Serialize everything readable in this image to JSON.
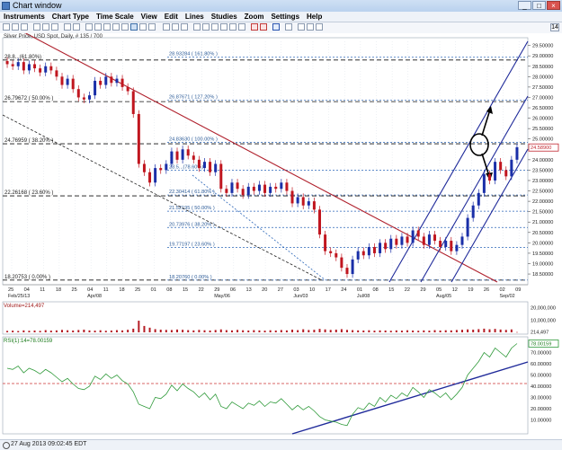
{
  "window": {
    "title": "Chart window",
    "min": "_",
    "max": "□",
    "close": "×"
  },
  "menu": [
    "Instruments",
    "Chart Type",
    "Time Scale",
    "View",
    "Edit",
    "Lines",
    "Studies",
    "Zoom",
    "Settings",
    "Help"
  ],
  "toolbar_badge": "14",
  "instrument_label": "Silver Price, USD Spot, Daily, # 135 / 700",
  "volume_label": "Volume=214,497",
  "rsi_label": "RSI(1):14=78.00159",
  "status": "27 Aug 2013 09:02:45 EDT",
  "price_axis": [
    "29.50000",
    "29.00000",
    "28.50000",
    "28.00000",
    "27.50000",
    "27.00000",
    "26.50000",
    "26.00000",
    "25.50000",
    "25.00000",
    "24.50000",
    "24.00000",
    "23.50000",
    "23.00000",
    "22.50000",
    "22.00000",
    "21.50000",
    "21.00000",
    "20.50000",
    "20.00000",
    "19.50000",
    "19.00000",
    "18.50000"
  ],
  "price_tag": "24.58900",
  "volume_axis": [
    "20,000,000",
    "10,000,000",
    "214,497"
  ],
  "rsi_axis": [
    "70.00000",
    "60.00000",
    "50.00000",
    "40.00000",
    "30.00000",
    "20.00000",
    "10.00000"
  ],
  "rsi_tag": "78.00159",
  "date_ticks": [
    "25",
    "04",
    "11",
    "18",
    "25",
    "04",
    "11",
    "18",
    "25",
    "01",
    "08",
    "15",
    "22",
    "29",
    "06",
    "13",
    "20",
    "27",
    "03",
    "10",
    "17",
    "24",
    "01",
    "08",
    "15",
    "22",
    "29",
    "05",
    "12",
    "19",
    "26",
    "02",
    "09"
  ],
  "month_labels": [
    "Feb/25/13",
    "Apr/08",
    "May/06",
    "Jun/03",
    "Jul/08",
    "Aug/05",
    "Sep/02"
  ],
  "fib_left": [
    "28.8...(61.80%)",
    "26.79672 ( 50.00% )",
    "24.76959 ( 38.20% )",
    "22.26168 ( 23.60% )",
    "18.20753 ( 0.00% )"
  ],
  "fib_right": [
    "28.93284 ( 161.80% )",
    "26.87671 ( 127.20% )",
    "24.83630 ( 100.00% )",
    "23.5...(78.60%)",
    "22.30414 ( 61.80% )",
    "21.52195 ( 50.00% )",
    "20.73976 ( 38.20% )",
    "19.77197 ( 23.60% )",
    "18.20760 ( 0.00% )"
  ],
  "chart_data": {
    "type": "candlestick",
    "instrument": "Silver Price, USD Spot, Daily",
    "y_range": [
      18.2,
      29.7
    ],
    "close_series": [
      28.6,
      28.5,
      28.7,
      28.3,
      28.6,
      28.4,
      28.2,
      28.5,
      28.3,
      28.0,
      27.6,
      27.9,
      27.4,
      27.0,
      26.9,
      27.1,
      27.8,
      27.6,
      28.0,
      27.7,
      27.9,
      27.5,
      27.3,
      26.2,
      23.8,
      23.4,
      22.9,
      23.6,
      23.5,
      23.8,
      24.4,
      24.0,
      24.5,
      24.2,
      24.0,
      23.6,
      23.9,
      23.4,
      23.8,
      22.6,
      22.4,
      22.9,
      22.6,
      22.3,
      22.7,
      22.5,
      22.8,
      22.4,
      22.7,
      22.6,
      22.9,
      22.5,
      21.9,
      22.2,
      21.8,
      22.0,
      21.6,
      20.4,
      19.6,
      19.5,
      19.3,
      18.8,
      18.5,
      19.2,
      19.6,
      19.4,
      19.8,
      19.5,
      20.0,
      19.7,
      20.2,
      19.9,
      20.3,
      20.0,
      20.6,
      20.3,
      19.9,
      20.4,
      20.1,
      19.8,
      20.1,
      19.6,
      19.9,
      20.3,
      21.2,
      21.8,
      22.4,
      23.3,
      23.0,
      23.9,
      23.5,
      23.2,
      24.0,
      24.6
    ],
    "fib_levels_left": [
      28.8,
      26.79672,
      24.76959,
      22.26168,
      18.20753
    ],
    "fib_levels_right": [
      28.93284,
      26.87671,
      24.8363,
      23.5,
      22.30414,
      21.52195,
      20.73976,
      19.77197,
      18.2076
    ],
    "volume": [
      1.2,
      1.4,
      1.1,
      1.6,
      1.3,
      1.5,
      1.2,
      1.8,
      1.4,
      1.6,
      2.0,
      1.7,
      1.5,
      1.9,
      2.2,
      1.6,
      1.4,
      1.7,
      1.3,
      1.5,
      1.8,
      1.6,
      2.1,
      3.0,
      9.5,
      5.2,
      3.8,
      2.6,
      2.2,
      2.0,
      1.9,
      2.3,
      2.1,
      1.8,
      1.6,
      2.0,
      1.7,
      1.5,
      1.9,
      2.4,
      1.8,
      1.6,
      2.0,
      1.7,
      1.5,
      1.8,
      1.6,
      1.4,
      1.7,
      1.5,
      1.9,
      1.6,
      2.2,
      1.8,
      2.5,
      1.9,
      2.1,
      2.8,
      2.4,
      2.0,
      2.2,
      2.6,
      2.0,
      1.8,
      1.6,
      1.5,
      1.7,
      1.4,
      1.6,
      1.5,
      1.3,
      1.6,
      1.4,
      1.7,
      1.5,
      1.3,
      1.6,
      1.4,
      1.8,
      1.5,
      1.7,
      1.6,
      1.9,
      2.1,
      2.4,
      2.2,
      2.6,
      3.0,
      2.5,
      2.8,
      2.3,
      2.0,
      2.4,
      0.2
    ],
    "volume_range": [
      0,
      22
    ],
    "rsi": [
      56,
      55,
      58,
      52,
      56,
      54,
      51,
      55,
      52,
      48,
      44,
      47,
      42,
      38,
      37,
      40,
      49,
      46,
      51,
      47,
      50,
      45,
      42,
      35,
      24,
      22,
      20,
      30,
      29,
      33,
      41,
      36,
      42,
      38,
      35,
      30,
      34,
      28,
      33,
      22,
      20,
      26,
      23,
      20,
      25,
      23,
      27,
      22,
      26,
      25,
      29,
      24,
      19,
      23,
      19,
      22,
      18,
      13,
      10,
      9,
      8,
      6,
      5,
      15,
      21,
      19,
      25,
      22,
      30,
      26,
      32,
      29,
      34,
      31,
      39,
      35,
      30,
      37,
      34,
      30,
      34,
      28,
      33,
      39,
      50,
      56,
      62,
      70,
      66,
      74,
      70,
      66,
      74,
      78
    ],
    "rsi_range": [
      0,
      80
    ],
    "rsi_level": 50
  }
}
